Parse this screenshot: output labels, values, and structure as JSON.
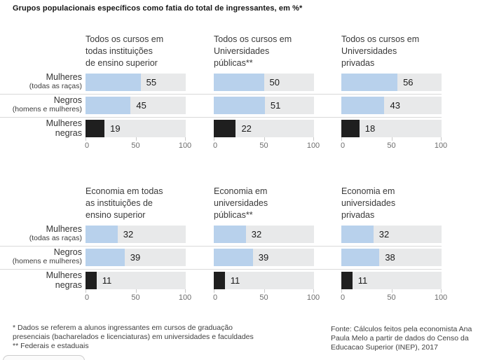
{
  "title": "Grupos populacionais específicos como fatia do total de ingressantes, em %*",
  "colors": {
    "bar_blue": "#b8d1ec",
    "bar_black": "#1f1f1f",
    "track_gray": "#e8e9ea",
    "divider": "#d9d9d9"
  },
  "row_labels": [
    {
      "label": "Mulheres",
      "sublabel": "(todas as raças)"
    },
    {
      "label": "Negros",
      "sublabel": "(homens e mulheres)"
    },
    {
      "label": "Mulheres negras",
      "sublabel": ""
    }
  ],
  "axis": {
    "ticks": [
      "0",
      "50",
      "100"
    ]
  },
  "chart_data": [
    {
      "type": "bar",
      "orientation": "horizontal",
      "title": "Todos os cursos em\ntodas instituições\nde ensino superior",
      "categories": [
        "Mulheres (todas as raças)",
        "Negros (homens e mulheres)",
        "Mulheres negras"
      ],
      "values": [
        55,
        45,
        19
      ],
      "xlim": [
        0,
        100
      ],
      "xticks": [
        0,
        50,
        100
      ]
    },
    {
      "type": "bar",
      "orientation": "horizontal",
      "title": "Todos os cursos em\nUniversidades\npúblicas**",
      "categories": [
        "Mulheres (todas as raças)",
        "Negros (homens e mulheres)",
        "Mulheres negras"
      ],
      "values": [
        50,
        51,
        22
      ],
      "xlim": [
        0,
        100
      ],
      "xticks": [
        0,
        50,
        100
      ]
    },
    {
      "type": "bar",
      "orientation": "horizontal",
      "title": "Todos os cursos em\nUniversidades\nprivadas",
      "categories": [
        "Mulheres (todas as raças)",
        "Negros (homens e mulheres)",
        "Mulheres negras"
      ],
      "values": [
        56,
        43,
        18
      ],
      "xlim": [
        0,
        100
      ],
      "xticks": [
        0,
        50,
        100
      ]
    },
    {
      "type": "bar",
      "orientation": "horizontal",
      "title": "Economia em todas\nas instituições de\nensino superior",
      "categories": [
        "Mulheres (todas as raças)",
        "Negros (homens e mulheres)",
        "Mulheres negras"
      ],
      "values": [
        32,
        39,
        11
      ],
      "xlim": [
        0,
        100
      ],
      "xticks": [
        0,
        50,
        100
      ]
    },
    {
      "type": "bar",
      "orientation": "horizontal",
      "title": "Economia em\nuniversidades\npúblicas**",
      "categories": [
        "Mulheres (todas as raças)",
        "Negros (homens e mulheres)",
        "Mulheres negras"
      ],
      "values": [
        32,
        39,
        11
      ],
      "xlim": [
        0,
        100
      ],
      "xticks": [
        0,
        50,
        100
      ]
    },
    {
      "type": "bar",
      "orientation": "horizontal",
      "title": "Economia em\nuniversidades\nprivadas",
      "categories": [
        "Mulheres (todas as raças)",
        "Negros (homens e mulheres)",
        "Mulheres negras"
      ],
      "values": [
        32,
        38,
        11
      ],
      "xlim": [
        0,
        100
      ],
      "xticks": [
        0,
        50,
        100
      ]
    }
  ],
  "footnotes": {
    "left": "* Dados se referem a alunos ingressantes em cursos de graduação\npresenciais (bacharelados e licenciaturas) em universidades e faculdades\n** Federais e estaduais",
    "source": "Fonte: Cálculos feitos pela economista Ana\nPaula Melo a partir de dados do Censo da\nEducacao Superior (INEP), 2017"
  }
}
